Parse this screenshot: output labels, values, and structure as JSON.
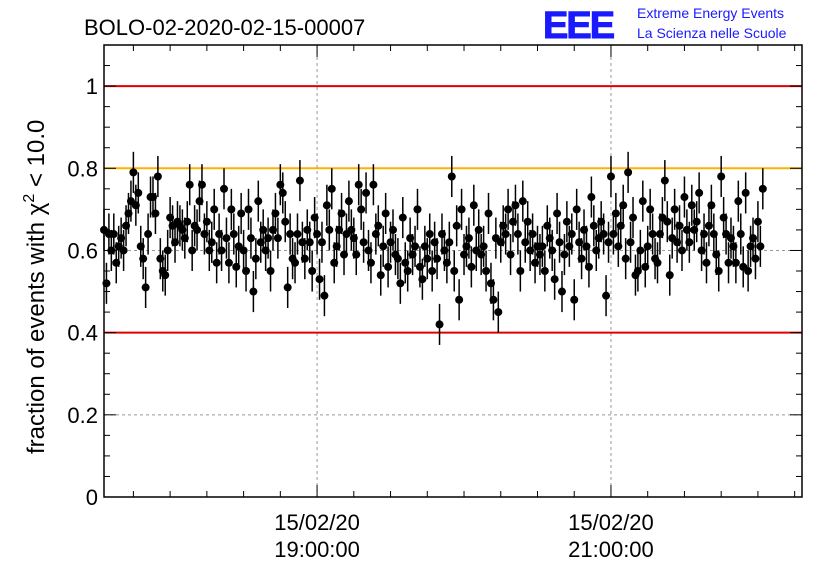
{
  "header": {
    "run_id": "BOLO-02-2020-02-15-00007",
    "logo": {
      "letters": "EEE",
      "line1": "Extreme Energy Events",
      "line2": "La Scienza nelle Scuole",
      "color": "#1a1aff"
    }
  },
  "chart_data": {
    "type": "scatter",
    "ylabel_prefix": "fraction of events with χ",
    "ylabel_sup": "2",
    "ylabel_suffix": " < 10.0",
    "ylim": [
      0,
      1.1
    ],
    "yticks": [
      0,
      0.2,
      0.4,
      0.6,
      0.8,
      1
    ],
    "ytick_labels": [
      "0",
      "0.2",
      "0.4",
      "0.6",
      "0.8",
      "1"
    ],
    "xlim_hours": [
      17.55,
      22.3
    ],
    "xticks_hours": [
      19,
      21
    ],
    "xtick_labels": [
      {
        "date": "15/02/20",
        "time": "19:00:00"
      },
      {
        "date": "15/02/20",
        "time": "21:00:00"
      }
    ],
    "reference_lines": [
      {
        "y": 1.0,
        "color": "#e00000"
      },
      {
        "y": 0.8,
        "color": "#ffb000"
      },
      {
        "y": 0.4,
        "color": "#e00000"
      }
    ],
    "grid": true,
    "series": [
      {
        "marker_color": "#000000",
        "x_start_hours": 17.55,
        "x_step_minutes": 1.0,
        "y_error": 0.05,
        "y": [
          0.65,
          0.52,
          0.64,
          0.6,
          0.64,
          0.57,
          0.61,
          0.63,
          0.6,
          0.66,
          0.69,
          0.72,
          0.79,
          0.71,
          0.74,
          0.61,
          0.58,
          0.51,
          0.64,
          0.73,
          0.73,
          0.69,
          0.78,
          0.58,
          0.55,
          0.54,
          0.6,
          0.68,
          0.66,
          0.62,
          0.67,
          0.66,
          0.65,
          0.63,
          0.67,
          0.76,
          0.6,
          0.66,
          0.65,
          0.72,
          0.76,
          0.64,
          0.67,
          0.6,
          0.62,
          0.7,
          0.57,
          0.64,
          0.6,
          0.75,
          0.63,
          0.57,
          0.7,
          0.64,
          0.56,
          0.61,
          0.69,
          0.6,
          0.55,
          0.7,
          0.63,
          0.5,
          0.58,
          0.72,
          0.62,
          0.65,
          0.6,
          0.63,
          0.55,
          0.65,
          0.69,
          0.63,
          0.76,
          0.74,
          0.67,
          0.51,
          0.64,
          0.58,
          0.57,
          0.64,
          0.77,
          0.62,
          0.58,
          0.65,
          0.62,
          0.55,
          0.68,
          0.64,
          0.53,
          0.62,
          0.49,
          0.71,
          0.65,
          0.75,
          0.57,
          0.61,
          0.65,
          0.69,
          0.59,
          0.64,
          0.72,
          0.65,
          0.63,
          0.59,
          0.76,
          0.7,
          0.62,
          0.74,
          0.6,
          0.57,
          0.76,
          0.64,
          0.66,
          0.54,
          0.61,
          0.69,
          0.56,
          0.62,
          0.65,
          0.59,
          0.58,
          0.52,
          0.68,
          0.57,
          0.55,
          0.63,
          0.59,
          0.61,
          0.7,
          0.56,
          0.53,
          0.61,
          0.58,
          0.64,
          0.55,
          0.62,
          0.58,
          0.42,
          0.64,
          0.6,
          0.57,
          0.62,
          0.78,
          0.55,
          0.66,
          0.48,
          0.7,
          0.59,
          0.61,
          0.63,
          0.56,
          0.71,
          0.6,
          0.65,
          0.59,
          0.61,
          0.55,
          0.69,
          0.52,
          0.48,
          0.63,
          0.45,
          0.62,
          0.66,
          0.64,
          0.7,
          0.59,
          0.67,
          0.71,
          0.64,
          0.55,
          0.72,
          0.62,
          0.67,
          0.6,
          0.64,
          0.57,
          0.61,
          0.59,
          0.61,
          0.55,
          0.66,
          0.63,
          0.6,
          0.53,
          0.69,
          0.62,
          0.5,
          0.59,
          0.67,
          0.61,
          0.64,
          0.48,
          0.7,
          0.62,
          0.58,
          0.65,
          0.61,
          0.56,
          0.73,
          0.66,
          0.6,
          0.63,
          0.67,
          0.64,
          0.49,
          0.62,
          0.78,
          0.64,
          0.69,
          0.61,
          0.66,
          0.71,
          0.58,
          0.79,
          0.62,
          0.68,
          0.54,
          0.55,
          0.6,
          0.72,
          0.56,
          0.61,
          0.7,
          0.64,
          0.58,
          0.57,
          0.64,
          0.68,
          0.77,
          0.67,
          0.54,
          0.63,
          0.7,
          0.62,
          0.66,
          0.6,
          0.73,
          0.65,
          0.62,
          0.71,
          0.65,
          0.67,
          0.74,
          0.6,
          0.64,
          0.57,
          0.66,
          0.71,
          0.64,
          0.59,
          0.55,
          0.78,
          0.68,
          0.64,
          0.57,
          0.63,
          0.61,
          0.57,
          0.72,
          0.64,
          0.56,
          0.74,
          0.55,
          0.61,
          0.63,
          0.58,
          0.67,
          0.61,
          0.75
        ]
      }
    ]
  }
}
